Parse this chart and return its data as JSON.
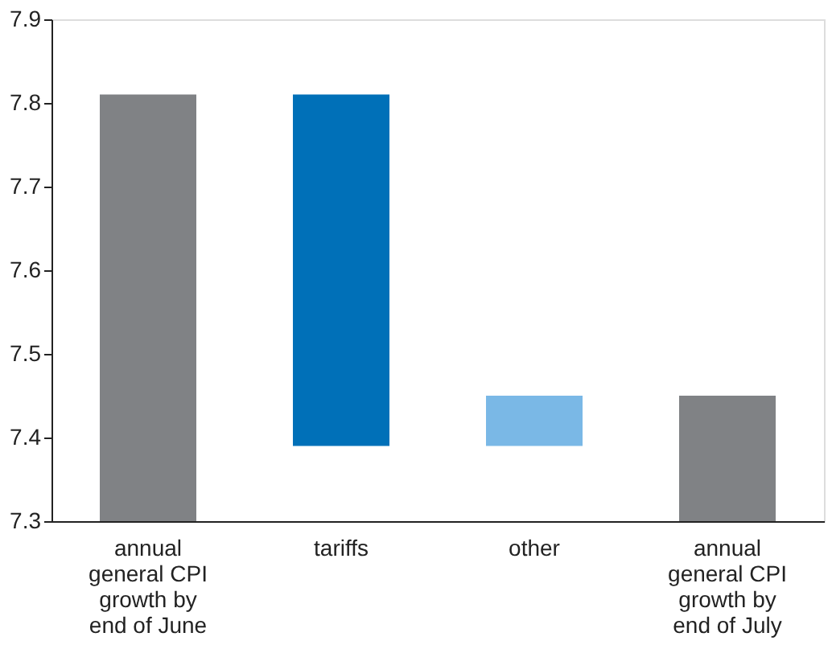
{
  "chart_data": {
    "type": "bar",
    "categories": [
      "annual general CPI growth by end of June",
      "tariffs",
      "other",
      "annual general CPI growth by end of July"
    ],
    "base": [
      7.3,
      7.81,
      7.39,
      7.3
    ],
    "values": [
      0.51,
      -0.42,
      0.06,
      0.15
    ],
    "colors": [
      "#808285",
      "#0070b8",
      "#7ab8e6",
      "#808285"
    ],
    "ylim": [
      7.3,
      7.9
    ],
    "yticks": [
      7.3,
      7.4,
      7.5,
      7.6,
      7.7,
      7.8,
      7.9
    ],
    "grid": false
  }
}
